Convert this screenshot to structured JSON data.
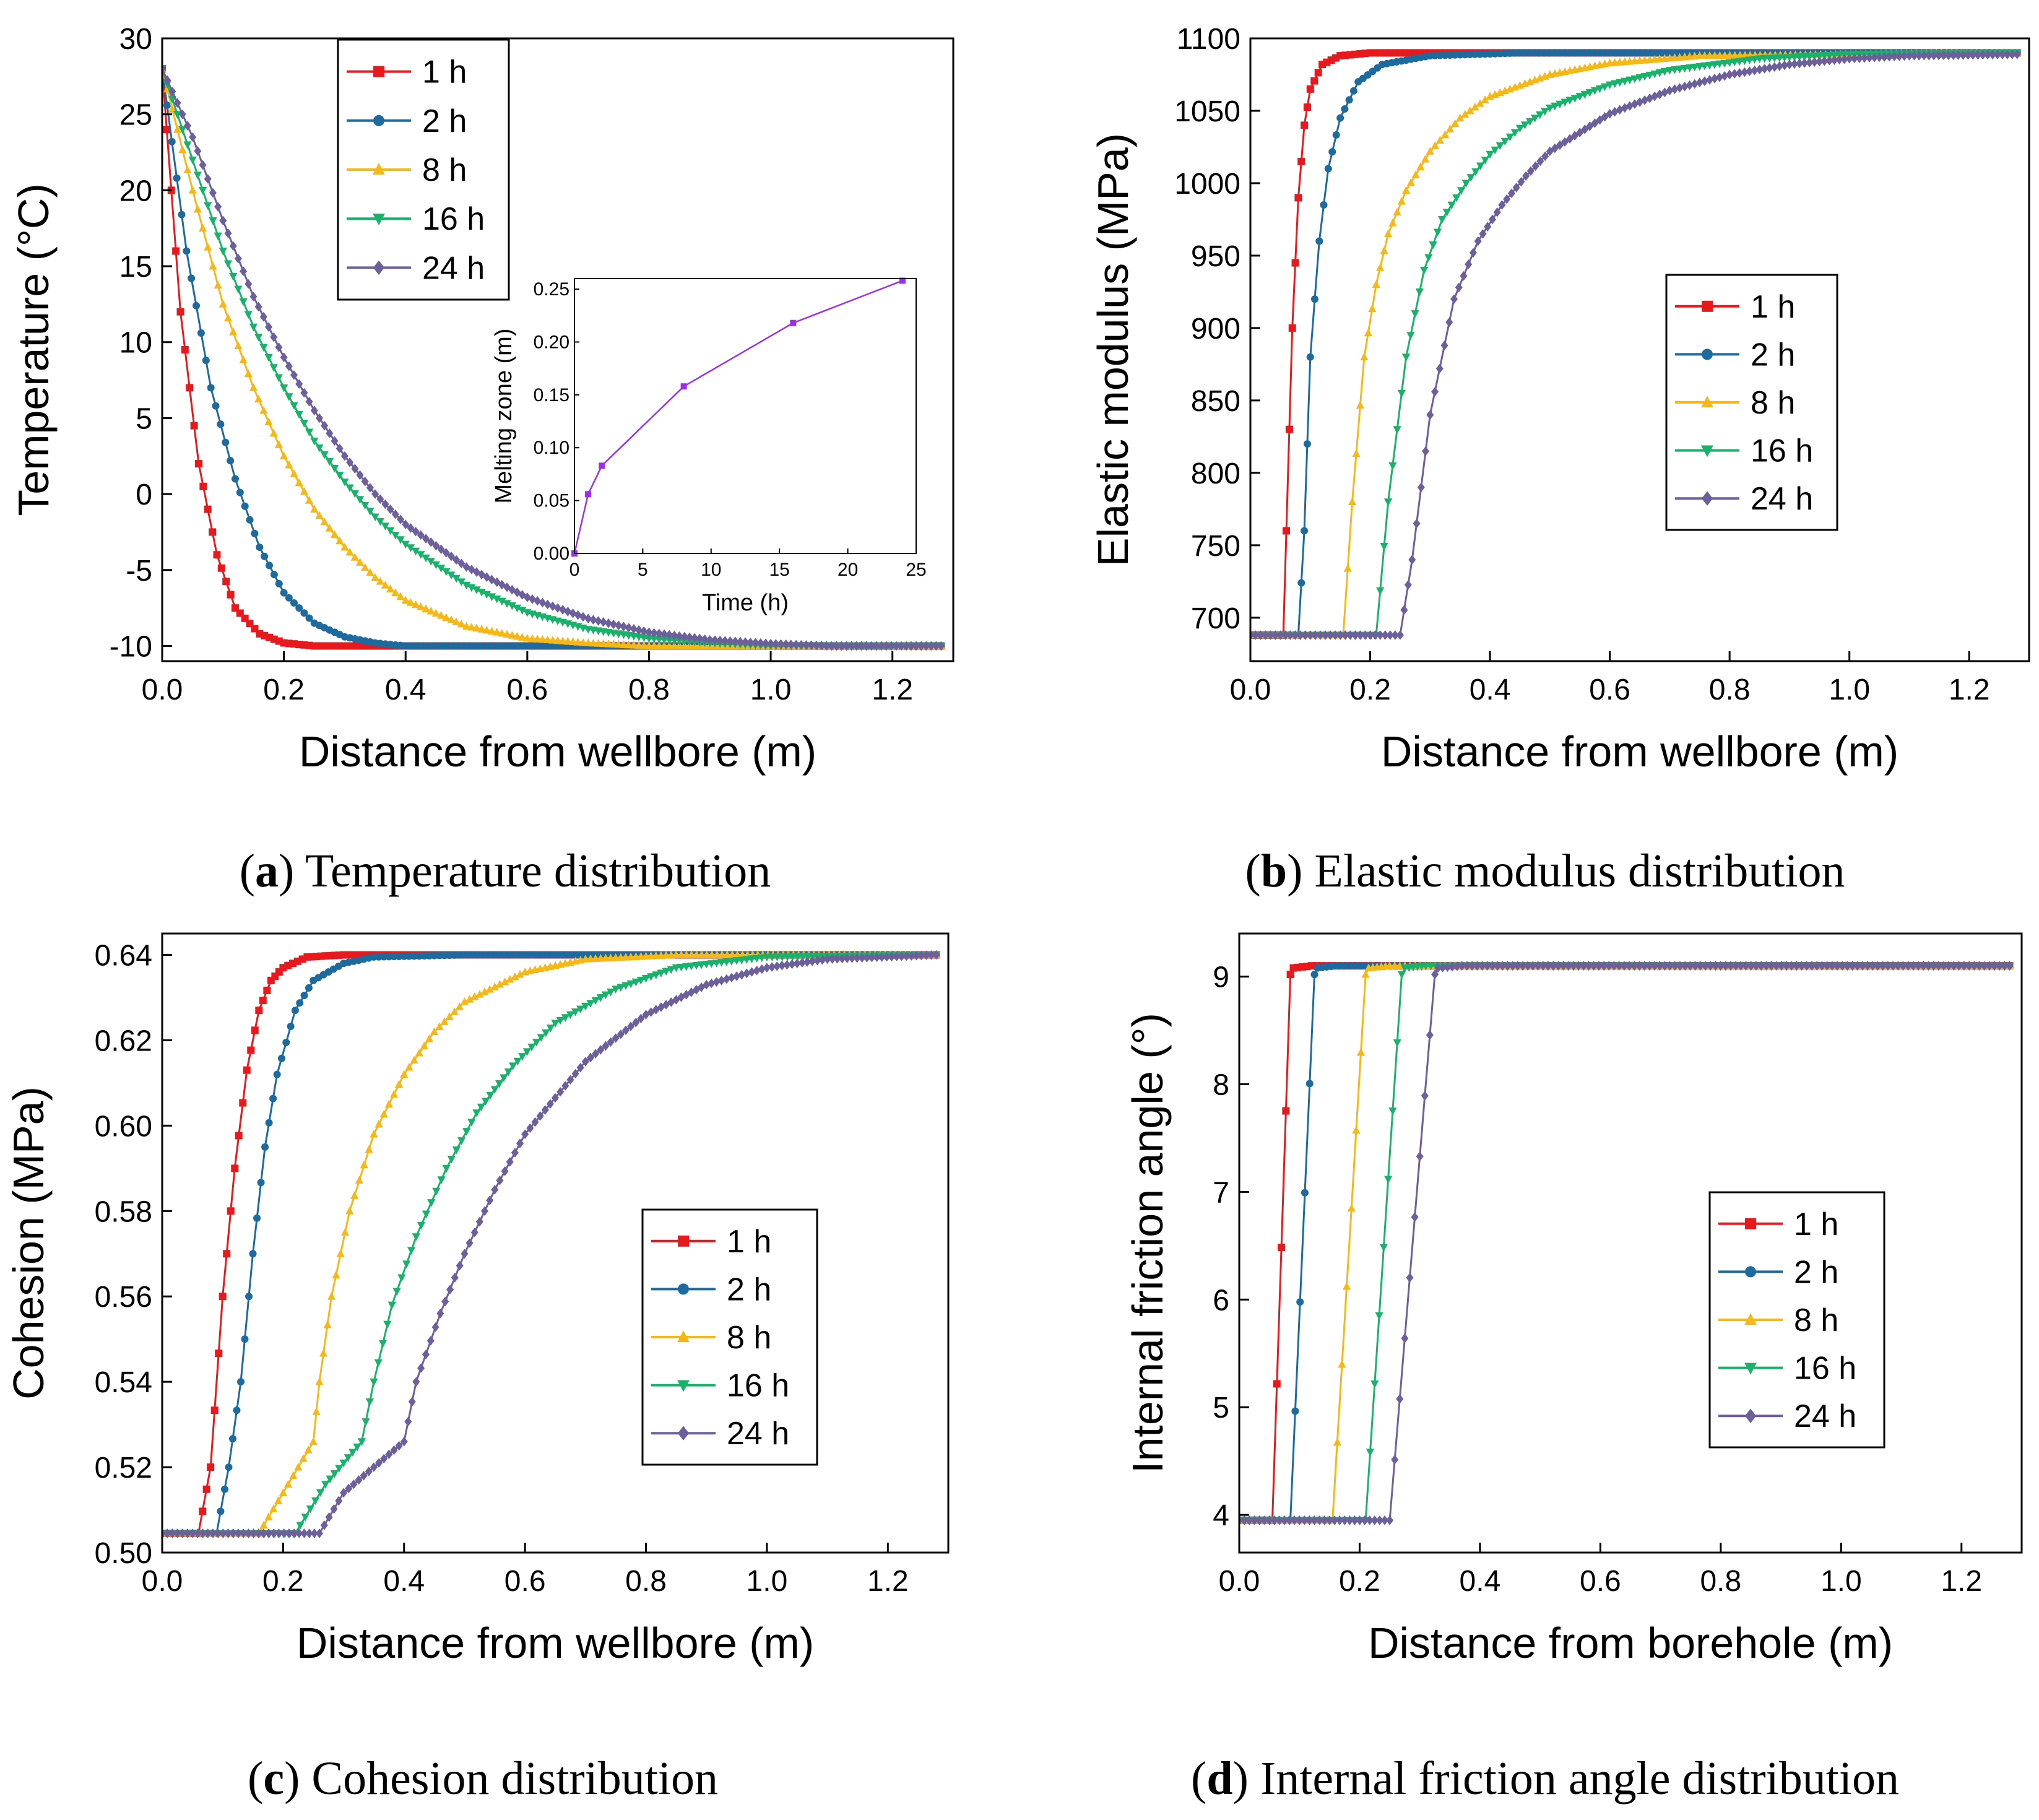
{
  "colors": {
    "1 h": "#e8191c",
    "2 h": "#1d6a9e",
    "8 h": "#f6b817",
    "16 h": "#19b26a",
    "24 h": "#6d5f9b",
    "inset": "#9b30e8"
  },
  "captions": {
    "a": {
      "letter": "a",
      "text": "Temperature distribution"
    },
    "b": {
      "letter": "b",
      "text": "Elastic modulus distribution"
    },
    "c": {
      "letter": "c",
      "text": "Cohesion distribution"
    },
    "d": {
      "letter": "d",
      "text": "Internal friction angle distribution"
    }
  },
  "chart_data": [
    {
      "id": "a",
      "type": "line",
      "xlabel": "Distance from wellbore (m)",
      "ylabel": "Temperature (°C)",
      "xlim": [
        0,
        1.3
      ],
      "ylim": [
        -11,
        30
      ],
      "xticks": [
        0.0,
        0.2,
        0.4,
        0.6,
        0.8,
        1.0,
        1.2
      ],
      "yticks": [
        -10,
        -5,
        0,
        5,
        10,
        15,
        20,
        25,
        30
      ],
      "xtick_labels": [
        "0.0",
        "0.2",
        "0.4",
        "0.6",
        "0.8",
        "1.0",
        "1.2"
      ],
      "ytick_labels": [
        "-10",
        "-5",
        "0",
        "5",
        "10",
        "15",
        "20",
        "25",
        "30"
      ],
      "legend": {
        "position": "top-left",
        "entries": [
          "1 h",
          "2 h",
          "8 h",
          "16 h",
          "24 h"
        ]
      },
      "series": [
        {
          "name": "1 h",
          "marker": "square",
          "x": [
            0,
            0.03,
            0.06,
            0.09,
            0.12,
            0.16,
            0.2,
            0.25,
            0.3,
            0.6,
            1.0,
            1.28
          ],
          "y": [
            28,
            12,
            2,
            -4,
            -7.5,
            -9.2,
            -9.8,
            -10,
            -10,
            -10,
            -10,
            -10
          ]
        },
        {
          "name": "2 h",
          "marker": "circle",
          "x": [
            0,
            0.04,
            0.08,
            0.12,
            0.16,
            0.2,
            0.25,
            0.3,
            0.35,
            0.4,
            0.6,
            1.0,
            1.28
          ],
          "y": [
            28,
            16,
            7,
            1,
            -3.5,
            -6.5,
            -8.5,
            -9.4,
            -9.8,
            -10,
            -10,
            -10,
            -10
          ]
        },
        {
          "name": "8 h",
          "marker": "triangle-up",
          "x": [
            0,
            0.05,
            0.1,
            0.15,
            0.2,
            0.25,
            0.3,
            0.35,
            0.4,
            0.5,
            0.6,
            0.7,
            0.8,
            1.0,
            1.28
          ],
          "y": [
            28,
            20,
            12.5,
            7,
            2.5,
            -1,
            -3.5,
            -5.5,
            -7,
            -8.7,
            -9.5,
            -9.8,
            -10,
            -10,
            -10
          ]
        },
        {
          "name": "16 h",
          "marker": "triangle-down",
          "x": [
            0,
            0.05,
            0.1,
            0.15,
            0.2,
            0.25,
            0.3,
            0.35,
            0.4,
            0.5,
            0.6,
            0.7,
            0.8,
            0.9,
            1.0,
            1.28
          ],
          "y": [
            28,
            22,
            16,
            11,
            7,
            3.5,
            0.8,
            -1.5,
            -3.3,
            -6,
            -7.8,
            -8.9,
            -9.5,
            -9.8,
            -10,
            -10
          ]
        },
        {
          "name": "24 h",
          "marker": "diamond",
          "x": [
            0,
            0.05,
            0.1,
            0.15,
            0.2,
            0.25,
            0.3,
            0.35,
            0.4,
            0.5,
            0.6,
            0.7,
            0.8,
            0.9,
            1.0,
            1.1,
            1.28
          ],
          "y": [
            28,
            23.5,
            18,
            13,
            9,
            5.5,
            2.5,
            0,
            -2,
            -4.8,
            -6.8,
            -8.2,
            -9.1,
            -9.6,
            -9.85,
            -10,
            -10
          ]
        }
      ],
      "inset": {
        "type": "line",
        "xlabel": "Time (h)",
        "ylabel": "Melting zone (m)",
        "xlim": [
          0,
          25
        ],
        "ylim": [
          0,
          0.26
        ],
        "xticks": [
          0,
          5,
          10,
          15,
          20,
          25
        ],
        "yticks": [
          0.0,
          0.05,
          0.1,
          0.15,
          0.2,
          0.25
        ],
        "xtick_labels": [
          "0",
          "5",
          "10",
          "15",
          "20",
          "25"
        ],
        "ytick_labels": [
          "0.00",
          "0.05",
          "0.10",
          "0.15",
          "0.20",
          "0.25"
        ],
        "x": [
          0,
          1,
          2,
          8,
          16,
          24
        ],
        "y": [
          0,
          0.056,
          0.083,
          0.158,
          0.218,
          0.258
        ]
      }
    },
    {
      "id": "b",
      "type": "line",
      "xlabel": "Distance from wellbore (m)",
      "ylabel": "Elastic modulus (MPa)",
      "xlim": [
        0,
        1.3
      ],
      "ylim": [
        670,
        1100
      ],
      "xticks": [
        0.0,
        0.2,
        0.4,
        0.6,
        0.8,
        1.0,
        1.2
      ],
      "yticks": [
        700,
        750,
        800,
        850,
        900,
        950,
        1000,
        1050,
        1100
      ],
      "xtick_labels": [
        "0.0",
        "0.2",
        "0.4",
        "0.6",
        "0.8",
        "1.0",
        "1.2"
      ],
      "ytick_labels": [
        "700",
        "750",
        "800",
        "850",
        "900",
        "950",
        "1000",
        "1050",
        "1100"
      ],
      "legend": {
        "position": "center-right",
        "entries": [
          "1 h",
          "2 h",
          "8 h",
          "16 h",
          "24 h"
        ]
      },
      "series": [
        {
          "name": "1 h",
          "marker": "square",
          "x": [
            0,
            0.055,
            0.06,
            0.07,
            0.08,
            0.09,
            0.1,
            0.12,
            0.15,
            0.2,
            0.3,
            1.28
          ],
          "y": [
            688,
            688,
            760,
            900,
            990,
            1040,
            1065,
            1082,
            1088,
            1090,
            1090,
            1090
          ]
        },
        {
          "name": "2 h",
          "marker": "circle",
          "x": [
            0,
            0.08,
            0.09,
            0.1,
            0.115,
            0.13,
            0.15,
            0.18,
            0.22,
            0.3,
            0.45,
            1.28
          ],
          "y": [
            688,
            688,
            760,
            880,
            960,
            1010,
            1045,
            1070,
            1082,
            1088,
            1090,
            1090
          ]
        },
        {
          "name": "8 h",
          "marker": "triangle-up",
          "x": [
            0,
            0.155,
            0.17,
            0.19,
            0.21,
            0.23,
            0.26,
            0.3,
            0.35,
            0.4,
            0.5,
            0.6,
            0.75,
            1.28
          ],
          "y": [
            688,
            688,
            780,
            880,
            930,
            965,
            995,
            1022,
            1045,
            1060,
            1075,
            1083,
            1088,
            1090
          ]
        },
        {
          "name": "16 h",
          "marker": "triangle-down",
          "x": [
            0,
            0.21,
            0.23,
            0.26,
            0.29,
            0.32,
            0.36,
            0.4,
            0.45,
            0.5,
            0.6,
            0.7,
            0.85,
            1.0,
            1.28
          ],
          "y": [
            688,
            688,
            780,
            880,
            940,
            975,
            1000,
            1020,
            1038,
            1052,
            1068,
            1078,
            1086,
            1089,
            1090
          ]
        },
        {
          "name": "24 h",
          "marker": "diamond",
          "x": [
            0,
            0.25,
            0.27,
            0.3,
            0.34,
            0.38,
            0.42,
            0.46,
            0.5,
            0.6,
            0.7,
            0.8,
            0.9,
            1.0,
            1.1,
            1.28
          ],
          "y": [
            688,
            688,
            740,
            840,
            920,
            960,
            985,
            1005,
            1022,
            1048,
            1064,
            1075,
            1082,
            1086,
            1088,
            1089
          ]
        }
      ]
    },
    {
      "id": "c",
      "type": "line",
      "xlabel": "Distance from wellbore (m)",
      "ylabel": "Cohesion (MPa)",
      "xlim": [
        0,
        1.3
      ],
      "ylim": [
        0.5,
        0.645
      ],
      "xticks": [
        0.0,
        0.2,
        0.4,
        0.6,
        0.8,
        1.0,
        1.2
      ],
      "yticks": [
        0.5,
        0.52,
        0.54,
        0.56,
        0.58,
        0.6,
        0.62,
        0.64
      ],
      "xtick_labels": [
        "0.0",
        "0.2",
        "0.4",
        "0.6",
        "0.8",
        "1.0",
        "1.2"
      ],
      "ytick_labels": [
        "0.50",
        "0.52",
        "0.54",
        "0.56",
        "0.58",
        "0.60",
        "0.62",
        "0.64"
      ],
      "legend": {
        "position": "center-right",
        "entries": [
          "1 h",
          "2 h",
          "8 h",
          "16 h",
          "24 h"
        ]
      },
      "series": [
        {
          "name": "1 h",
          "marker": "square",
          "x": [
            0,
            0.06,
            0.08,
            0.1,
            0.12,
            0.14,
            0.16,
            0.18,
            0.2,
            0.24,
            0.3,
            1.28
          ],
          "y": [
            0.5045,
            0.5045,
            0.52,
            0.56,
            0.59,
            0.613,
            0.627,
            0.634,
            0.637,
            0.6395,
            0.64,
            0.64
          ]
        },
        {
          "name": "2 h",
          "marker": "circle",
          "x": [
            0,
            0.09,
            0.11,
            0.13,
            0.15,
            0.17,
            0.19,
            0.22,
            0.25,
            0.3,
            0.35,
            0.5,
            1.28
          ],
          "y": [
            0.5045,
            0.5045,
            0.52,
            0.54,
            0.57,
            0.595,
            0.612,
            0.627,
            0.634,
            0.638,
            0.6395,
            0.64,
            0.64
          ]
        },
        {
          "name": "8 h",
          "marker": "triangle-up",
          "x": [
            0,
            0.16,
            0.2,
            0.25,
            0.26,
            0.28,
            0.31,
            0.35,
            0.4,
            0.45,
            0.5,
            0.6,
            0.7,
            0.85,
            1.28
          ],
          "y": [
            0.5045,
            0.5045,
            0.514,
            0.526,
            0.54,
            0.56,
            0.58,
            0.598,
            0.612,
            0.622,
            0.629,
            0.636,
            0.639,
            0.64,
            0.64
          ]
        },
        {
          "name": "16 h",
          "marker": "triangle-down",
          "x": [
            0,
            0.22,
            0.27,
            0.33,
            0.35,
            0.38,
            0.42,
            0.47,
            0.52,
            0.58,
            0.65,
            0.75,
            0.85,
            1.0,
            1.28
          ],
          "y": [
            0.5045,
            0.5045,
            0.516,
            0.526,
            0.54,
            0.558,
            0.574,
            0.59,
            0.603,
            0.614,
            0.624,
            0.632,
            0.637,
            0.6395,
            0.64
          ]
        },
        {
          "name": "24 h",
          "marker": "diamond",
          "x": [
            0,
            0.26,
            0.3,
            0.35,
            0.4,
            0.42,
            0.46,
            0.5,
            0.55,
            0.6,
            0.7,
            0.8,
            0.9,
            1.0,
            1.1,
            1.28
          ],
          "y": [
            0.5045,
            0.5045,
            0.514,
            0.52,
            0.526,
            0.54,
            0.556,
            0.57,
            0.585,
            0.598,
            0.615,
            0.626,
            0.633,
            0.637,
            0.639,
            0.64
          ]
        }
      ]
    },
    {
      "id": "d",
      "type": "line",
      "xlabel": "Distance from borehole (m)",
      "ylabel": "Internal friction angle (°)",
      "xlim": [
        0,
        1.3
      ],
      "ylim": [
        3.65,
        9.4
      ],
      "xticks": [
        0.0,
        0.2,
        0.4,
        0.6,
        0.8,
        1.0,
        1.2
      ],
      "yticks": [
        4,
        5,
        6,
        7,
        8,
        9
      ],
      "xtick_labels": [
        "0.0",
        "0.2",
        "0.4",
        "0.6",
        "0.8",
        "1.0",
        "1.2"
      ],
      "ytick_labels": [
        "4",
        "5",
        "6",
        "7",
        "8",
        "9"
      ],
      "legend": {
        "position": "center-right",
        "entries": [
          "1 h",
          "2 h",
          "8 h",
          "16 h",
          "24 h"
        ]
      },
      "series": [
        {
          "name": "1 h",
          "marker": "square",
          "x": [
            0,
            0.055,
            0.085,
            0.09,
            0.12,
            1.28
          ],
          "y": [
            3.95,
            3.95,
            9.02,
            9.08,
            9.1,
            9.1
          ]
        },
        {
          "name": "2 h",
          "marker": "circle",
          "x": [
            0,
            0.085,
            0.125,
            0.13,
            0.16,
            1.28
          ],
          "y": [
            3.95,
            3.95,
            9.02,
            9.08,
            9.1,
            9.1
          ]
        },
        {
          "name": "8 h",
          "marker": "triangle-up",
          "x": [
            0,
            0.155,
            0.21,
            0.215,
            0.25,
            1.28
          ],
          "y": [
            3.95,
            3.95,
            9.02,
            9.08,
            9.1,
            9.1
          ]
        },
        {
          "name": "16 h",
          "marker": "triangle-down",
          "x": [
            0,
            0.21,
            0.27,
            0.275,
            0.31,
            1.28
          ],
          "y": [
            3.95,
            3.95,
            9.02,
            9.08,
            9.1,
            9.1
          ]
        },
        {
          "name": "24 h",
          "marker": "diamond",
          "x": [
            0,
            0.25,
            0.325,
            0.33,
            0.37,
            1.28
          ],
          "y": [
            3.95,
            3.95,
            9.02,
            9.08,
            9.1,
            9.1
          ]
        }
      ]
    }
  ]
}
